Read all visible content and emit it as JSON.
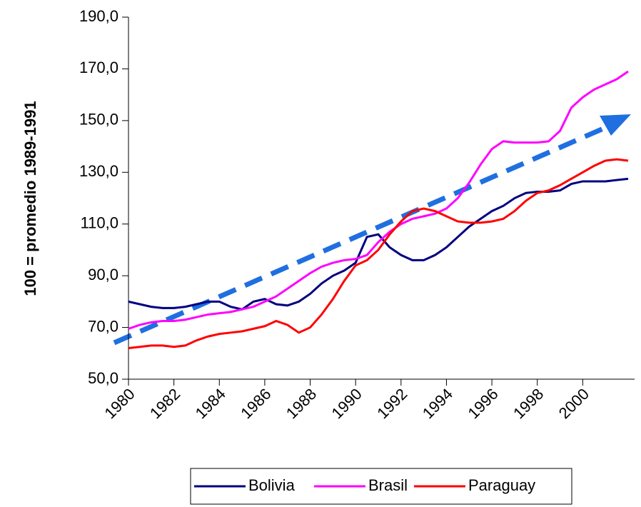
{
  "chart_data": {
    "type": "line",
    "ylabel": "100 = promedio 1989-1991",
    "x": [
      1980,
      1980.5,
      1981,
      1981.5,
      1982,
      1982.5,
      1983,
      1983.5,
      1984,
      1984.5,
      1985,
      1985.5,
      1986,
      1986.5,
      1987,
      1987.5,
      1988,
      1988.5,
      1989,
      1989.5,
      1990,
      1990.5,
      1991,
      1991.5,
      1992,
      1992.5,
      1993,
      1993.5,
      1994,
      1994.5,
      1995,
      1995.5,
      1996,
      1996.5,
      1997,
      1997.5,
      1998,
      1998.5,
      1999,
      1999.5,
      2000,
      2000.5,
      2001,
      2001.5,
      2002
    ],
    "series": [
      {
        "name": "Bolivia",
        "color": "#000080",
        "values": [
          80,
          79,
          78,
          77.5,
          77.5,
          78,
          79,
          80,
          80,
          78,
          77,
          80,
          81,
          79,
          78.5,
          80,
          83,
          87,
          90,
          92,
          95,
          105,
          106,
          101,
          98,
          96,
          96,
          98,
          101,
          105,
          109,
          112,
          115,
          117,
          120,
          122,
          122.5,
          122.5,
          123,
          125.5,
          126.5,
          126.5,
          126.5,
          127,
          127.5
        ]
      },
      {
        "name": "Brasil",
        "color": "#ff00ff",
        "values": [
          69.5,
          71,
          72,
          72.5,
          72.5,
          73,
          74,
          75,
          75.5,
          76,
          77,
          78,
          80,
          82,
          85,
          88,
          91,
          93.5,
          95,
          96,
          96.5,
          98,
          103,
          107,
          110,
          112,
          113,
          114,
          116,
          120,
          126,
          133,
          139,
          142,
          141.5,
          141.5,
          141.5,
          142,
          146,
          155,
          159,
          162,
          164,
          166,
          169
        ]
      },
      {
        "name": "Paraguay",
        "color": "#ff0000",
        "values": [
          62,
          62.5,
          63,
          63,
          62.5,
          63,
          65,
          66.5,
          67.5,
          68,
          68.5,
          69.5,
          70.5,
          72.5,
          71,
          68,
          70,
          75,
          81,
          88,
          94,
          96,
          100,
          106,
          111,
          115,
          116,
          115,
          113,
          111,
          110.5,
          110.5,
          111,
          112,
          115,
          119,
          122,
          123,
          125,
          127.5,
          130,
          132.5,
          134.5,
          135,
          134.5
        ]
      }
    ],
    "xlim": [
      1980,
      2002
    ],
    "xticks": [
      1980,
      1982,
      1984,
      1986,
      1988,
      1990,
      1992,
      1994,
      1996,
      1998,
      2000
    ],
    "ylim": [
      50,
      190
    ],
    "yticks": [
      {
        "value": 50,
        "label": "50,0"
      },
      {
        "value": 70,
        "label": "70,0"
      },
      {
        "value": 90,
        "label": "90,0"
      },
      {
        "value": 110,
        "label": "110,0"
      },
      {
        "value": 130,
        "label": "130,0"
      },
      {
        "value": 150,
        "label": "150,0"
      },
      {
        "value": 170,
        "label": "170,0"
      },
      {
        "value": 190,
        "label": "190,0"
      }
    ],
    "legend": "bottom"
  }
}
